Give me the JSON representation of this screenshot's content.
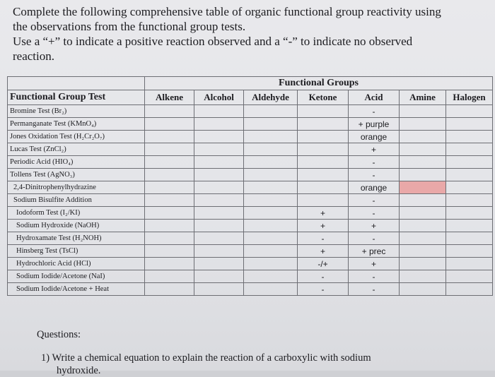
{
  "instructions": {
    "line1": "Complete the following comprehensive table of organic functional group reactivity using",
    "line2": "the observations from the functional group tests.",
    "line3": "Use a “+” to indicate a positive reaction observed and a “-” to indicate no observed",
    "line4": "reaction."
  },
  "table": {
    "groups_title": "Functional Groups",
    "test_header": "Functional Group Test",
    "columns": [
      "Alkene",
      "Alcohol",
      "Aldehyde",
      "Ketone",
      "Acid",
      "Amine",
      "Halogen"
    ],
    "rows": [
      {
        "test": "Bromine Test (Br₂)",
        "alkene": "",
        "alcohol": "",
        "aldehyde": "",
        "ketone": "",
        "acid": "-",
        "amine": "",
        "halogen": ""
      },
      {
        "test": "Permanganate Test (KMnO₄)",
        "alkene": "",
        "alcohol": "",
        "aldehyde": "",
        "ketone": "",
        "acid": "+ purple",
        "amine": "",
        "halogen": ""
      },
      {
        "test": "Jones Oxidation Test (H₂Cr₂O₇)",
        "alkene": "",
        "alcohol": "",
        "aldehyde": "",
        "ketone": "",
        "acid": "orange",
        "amine": "",
        "halogen": ""
      },
      {
        "test": "Lucas Test (ZnCl₂)",
        "alkene": "",
        "alcohol": "",
        "aldehyde": "",
        "ketone": "",
        "acid": "+",
        "amine": "",
        "halogen": ""
      },
      {
        "test": "Periodic Acid (HIO₄)",
        "alkene": "",
        "alcohol": "",
        "aldehyde": "",
        "ketone": "",
        "acid": "-",
        "amine": "",
        "halogen": ""
      },
      {
        "test": "Tollens Test (AgNO₃)",
        "alkene": "",
        "alcohol": "",
        "aldehyde": "",
        "ketone": "",
        "acid": "-",
        "amine": "",
        "halogen": ""
      },
      {
        "test": "2,4-Dinitrophenylhydrazine",
        "alkene": "",
        "alcohol": "",
        "aldehyde": "",
        "ketone": "",
        "acid": "orange",
        "amine": "",
        "halogen": ""
      },
      {
        "test": "Sodium Bisulfite Addition",
        "alkene": "",
        "alcohol": "",
        "aldehyde": "",
        "ketone": "",
        "acid": "-",
        "amine": "",
        "halogen": ""
      },
      {
        "test": "Iodoform Test (I₂/KI)",
        "alkene": "",
        "alcohol": "",
        "aldehyde": "",
        "ketone": "+",
        "acid": "-",
        "amine": "",
        "halogen": ""
      },
      {
        "test": "Sodium Hydroxide (NaOH)",
        "alkene": "",
        "alcohol": "",
        "aldehyde": "",
        "ketone": "+",
        "acid": "+",
        "amine": "",
        "halogen": ""
      },
      {
        "test": "Hydroxamate Test (H₂NOH)",
        "alkene": "",
        "alcohol": "",
        "aldehyde": "",
        "ketone": "-",
        "acid": "-",
        "amine": "",
        "halogen": ""
      },
      {
        "test": "Hinsberg Test (TsCl)",
        "alkene": "",
        "alcohol": "",
        "aldehyde": "",
        "ketone": "+",
        "acid": "+ prec",
        "amine": "",
        "halogen": ""
      },
      {
        "test": "Hydrochloric Acid (HCl)",
        "alkene": "",
        "alcohol": "",
        "aldehyde": "",
        "ketone": "-/+",
        "acid": "+",
        "amine": "",
        "halogen": ""
      },
      {
        "test": "Sodium Iodide/Acetone (NaI)",
        "alkene": "",
        "alcohol": "",
        "aldehyde": "",
        "ketone": "-",
        "acid": "-",
        "amine": "",
        "halogen": ""
      },
      {
        "test": "Sodium Iodide/Acetone + Heat",
        "alkene": "",
        "alcohol": "",
        "aldehyde": "",
        "ketone": "-",
        "acid": "-",
        "amine": "",
        "halogen": ""
      }
    ],
    "highlight_color": "#e9a8a8"
  },
  "questions": {
    "heading": "Questions:",
    "q1": "1)  Write a chemical equation to explain the reaction of a carboxylic with sodium",
    "q1_cont": "hydroxide."
  }
}
